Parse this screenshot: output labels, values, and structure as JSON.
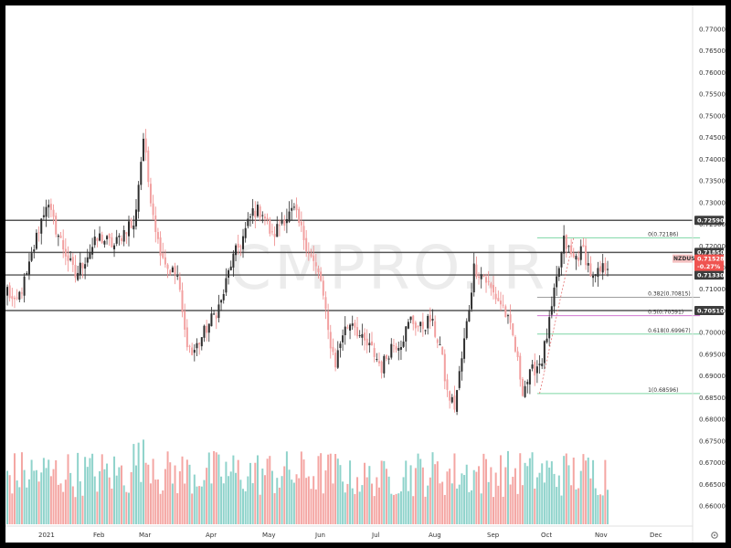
{
  "chart_data": {
    "type": "candlestick",
    "symbol": "NZDUSD",
    "last_price": "0.71528",
    "change": "-0.27%",
    "watermark": "CMPRO.IR",
    "ylim": [
      0.6575,
      0.7725
    ],
    "y_ticks": [
      "0.77000",
      "0.76500",
      "0.76000",
      "0.75500",
      "0.75000",
      "0.74500",
      "0.74000",
      "0.73500",
      "0.73000",
      "0.72500",
      "0.72000",
      "0.71500",
      "0.71000",
      "0.70500",
      "0.70000",
      "0.69500",
      "0.69000",
      "0.68500",
      "0.68000",
      "0.67500",
      "0.67000",
      "0.66500",
      "0.66000"
    ],
    "x_labels": [
      "2021",
      "Feb",
      "Mar",
      "Apr",
      "May",
      "Jun",
      "Jul",
      "Aug",
      "Sep",
      "Oct",
      "Nov",
      "Dec"
    ],
    "horizontal_levels": [
      {
        "value": 0.7259,
        "label": "0.72590"
      },
      {
        "value": 0.7185,
        "label": "0.71850"
      },
      {
        "value": 0.7133,
        "label": "0.71330"
      },
      {
        "value": 0.7051,
        "label": "0.70510"
      }
    ],
    "fibonacci": [
      {
        "ratio": "0",
        "value": 0.72186,
        "label": "0(0.72186)",
        "color": "#7ed6a5"
      },
      {
        "ratio": "0.382",
        "value": 0.70815,
        "label": "0.382(0.70815)",
        "color": "#9e9e9e"
      },
      {
        "ratio": "0.5",
        "value": 0.70391,
        "label": "0.5(0.70391)",
        "color": "#d37ad3"
      },
      {
        "ratio": "0.618",
        "value": 0.69967,
        "label": "0.618(0.69967)",
        "color": "#7ed6a5"
      },
      {
        "ratio": "1",
        "value": 0.68596,
        "label": "1(0.68596)",
        "color": "#7ed6a5"
      }
    ],
    "waypoints": [
      [
        0,
        0.71
      ],
      [
        3,
        0.706
      ],
      [
        8,
        0.713
      ],
      [
        12,
        0.722
      ],
      [
        16,
        0.73
      ],
      [
        22,
        0.721
      ],
      [
        28,
        0.713
      ],
      [
        34,
        0.719
      ],
      [
        38,
        0.722
      ],
      [
        44,
        0.72
      ],
      [
        50,
        0.725
      ],
      [
        52,
        0.724
      ],
      [
        56,
        0.745
      ],
      [
        58,
        0.735
      ],
      [
        62,
        0.721
      ],
      [
        66,
        0.715
      ],
      [
        70,
        0.713
      ],
      [
        73,
        0.7
      ],
      [
        76,
        0.695
      ],
      [
        80,
        0.699
      ],
      [
        84,
        0.703
      ],
      [
        88,
        0.707
      ],
      [
        92,
        0.716
      ],
      [
        97,
        0.722
      ],
      [
        101,
        0.728
      ],
      [
        105,
        0.728
      ],
      [
        109,
        0.722
      ],
      [
        113,
        0.726
      ],
      [
        118,
        0.728
      ],
      [
        122,
        0.722
      ],
      [
        126,
        0.716
      ],
      [
        129,
        0.712
      ],
      [
        132,
        0.7
      ],
      [
        135,
        0.693
      ],
      [
        138,
        0.7
      ],
      [
        142,
        0.703
      ],
      [
        146,
        0.698
      ],
      [
        150,
        0.696
      ],
      [
        154,
        0.692
      ],
      [
        158,
        0.697
      ],
      [
        162,
        0.698
      ],
      [
        166,
        0.703
      ],
      [
        170,
        0.701
      ],
      [
        174,
        0.703
      ],
      [
        178,
        0.697
      ],
      [
        181,
        0.686
      ],
      [
        184,
        0.683
      ],
      [
        187,
        0.694
      ],
      [
        190,
        0.706
      ],
      [
        192,
        0.715
      ],
      [
        196,
        0.713
      ],
      [
        200,
        0.709
      ],
      [
        204,
        0.706
      ],
      [
        208,
        0.699
      ],
      [
        212,
        0.687
      ],
      [
        216,
        0.691
      ],
      [
        220,
        0.694
      ],
      [
        223,
        0.702
      ],
      [
        226,
        0.712
      ],
      [
        229,
        0.721
      ],
      [
        233,
        0.717
      ],
      [
        237,
        0.719
      ],
      [
        241,
        0.712
      ],
      [
        244,
        0.714
      ],
      [
        247,
        0.716
      ]
    ],
    "volume_range": [
      0.3,
      1.0
    ],
    "colors": {
      "up": "#26a69a",
      "down": "#ef5350",
      "vol_up": "#8fd3cb",
      "vol_down": "#f4a6a3",
      "level": "#555555",
      "price_tag": "#ef5350"
    }
  }
}
